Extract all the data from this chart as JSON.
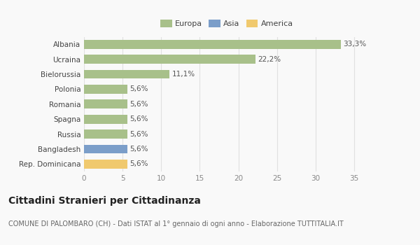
{
  "categories": [
    "Albania",
    "Ucraina",
    "Bielorussia",
    "Polonia",
    "Romania",
    "Spagna",
    "Russia",
    "Bangladesh",
    "Rep. Dominicana"
  ],
  "values": [
    33.3,
    22.2,
    11.1,
    5.6,
    5.6,
    5.6,
    5.6,
    5.6,
    5.6
  ],
  "bar_colors": [
    "#a8c08a",
    "#a8c08a",
    "#a8c08a",
    "#a8c08a",
    "#a8c08a",
    "#a8c08a",
    "#a8c08a",
    "#7b9ec9",
    "#f0c96e"
  ],
  "labels": [
    "33,3%",
    "22,2%",
    "11,1%",
    "5,6%",
    "5,6%",
    "5,6%",
    "5,6%",
    "5,6%",
    "5,6%"
  ],
  "legend": [
    {
      "label": "Europa",
      "color": "#a8c08a"
    },
    {
      "label": "Asia",
      "color": "#7b9ec9"
    },
    {
      "label": "America",
      "color": "#f0c96e"
    }
  ],
  "xlim": [
    0,
    37
  ],
  "xticks": [
    0,
    5,
    10,
    15,
    20,
    25,
    30,
    35
  ],
  "title": "Cittadini Stranieri per Cittadinanza",
  "subtitle": "COMUNE DI PALOMBARO (CH) - Dati ISTAT al 1° gennaio di ogni anno - Elaborazione TUTTITALIA.IT",
  "bg_color": "#f9f9f9",
  "grid_color": "#e0e0e0",
  "bar_height": 0.6,
  "title_fontsize": 10,
  "subtitle_fontsize": 7,
  "label_fontsize": 7.5,
  "tick_fontsize": 7.5,
  "legend_fontsize": 8,
  "ytick_fontsize": 7.5
}
